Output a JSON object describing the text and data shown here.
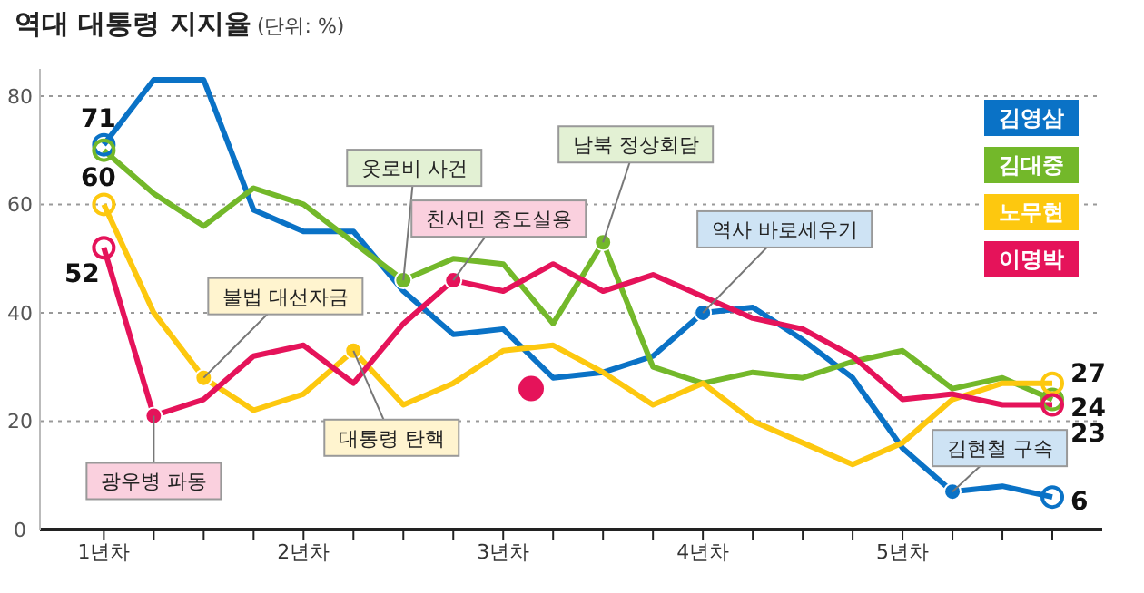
{
  "chart_data": {
    "type": "line",
    "title": "역대 대통령 지지율",
    "subtitle": "(단위: %)",
    "x": [
      1,
      1.25,
      1.5,
      1.75,
      2,
      2.25,
      2.5,
      2.75,
      3,
      3.25,
      3.5,
      3.75,
      4,
      4.25,
      4.5,
      4.75,
      5,
      5.25,
      5.5,
      5.75
    ],
    "xlim": [
      0.68,
      6
    ],
    "xticks": [
      {
        "value": 1,
        "label": "1년차"
      },
      {
        "value": 1.25,
        "label": null
      },
      {
        "value": 1.5,
        "label": null
      },
      {
        "value": 1.75,
        "label": null
      },
      {
        "value": 2,
        "label": "2년차"
      },
      {
        "value": 2.25,
        "label": null
      },
      {
        "value": 2.5,
        "label": null
      },
      {
        "value": 2.75,
        "label": null
      },
      {
        "value": 3,
        "label": "3년차"
      },
      {
        "value": 3.25,
        "label": null
      },
      {
        "value": 3.5,
        "label": null
      },
      {
        "value": 3.75,
        "label": null
      },
      {
        "value": 4,
        "label": "4년차"
      },
      {
        "value": 4.25,
        "label": null
      },
      {
        "value": 4.5,
        "label": null
      },
      {
        "value": 4.75,
        "label": null
      },
      {
        "value": 5,
        "label": "5년차"
      },
      {
        "value": 5.25,
        "label": null
      },
      {
        "value": 5.5,
        "label": null
      },
      {
        "value": 5.75,
        "label": null
      }
    ],
    "ylim": [
      0,
      85
    ],
    "yticks": [
      0,
      20,
      40,
      60,
      80
    ],
    "grid": "y",
    "legend": "top right",
    "line_style": "solid",
    "series": [
      {
        "name": "김영삼",
        "color": "#0a72c6",
        "values": [
          71,
          83,
          83,
          59,
          55,
          55,
          44,
          36,
          37,
          28,
          29,
          32,
          40,
          41,
          35,
          28,
          15,
          7,
          8,
          6
        ],
        "value_labels": [
          "71",
          null,
          null,
          null,
          null,
          null,
          null,
          null,
          null,
          null,
          null,
          null,
          null,
          null,
          null,
          null,
          null,
          null,
          null,
          "6"
        ]
      },
      {
        "name": "김대중",
        "color": "#73b82a",
        "values": [
          70,
          62,
          56,
          63,
          60,
          53,
          46,
          50,
          49,
          38,
          53,
          30,
          27,
          29,
          28,
          31,
          33,
          26,
          28,
          24
        ],
        "value_labels": [
          null,
          null,
          null,
          null,
          null,
          null,
          null,
          null,
          null,
          null,
          null,
          null,
          null,
          null,
          null,
          null,
          null,
          null,
          null,
          "24"
        ]
      },
      {
        "name": "노무현",
        "color": "#fdc80f",
        "values": [
          60,
          40,
          28,
          22,
          25,
          33,
          23,
          27,
          33,
          34,
          29,
          23,
          27,
          20,
          16,
          12,
          16,
          24,
          27,
          27
        ],
        "value_labels": [
          "60",
          null,
          null,
          null,
          null,
          null,
          null,
          null,
          null,
          null,
          null,
          null,
          null,
          null,
          null,
          null,
          null,
          null,
          null,
          "27"
        ]
      },
      {
        "name": "이명박",
        "color": "#e5135a",
        "values": [
          52,
          21,
          24,
          32,
          34,
          27,
          38,
          46,
          44,
          49,
          44,
          47,
          43,
          39,
          37,
          32,
          24,
          25,
          23,
          23
        ],
        "value_labels": [
          "52",
          null,
          null,
          null,
          null,
          null,
          null,
          null,
          null,
          null,
          null,
          null,
          null,
          null,
          null,
          null,
          null,
          null,
          null,
          "23"
        ]
      },
      {
        "type": "scatter",
        "color": "#e5135a",
        "x": [
          3.14
        ],
        "values": [
          26
        ]
      }
    ],
    "annotations": [
      {
        "text": "광우병 파동",
        "x": 1.25,
        "y": 21
      },
      {
        "text": "불법 대선자금",
        "x": 1.5,
        "y": 28
      },
      {
        "text": "대통령 탄핵",
        "x": 2.25,
        "y": 33
      },
      {
        "text": "옷로비 사건",
        "x": 2.5,
        "y": 46
      },
      {
        "text": "친서민 중도실용",
        "x": 2.75,
        "y": 46
      },
      {
        "text": "남북 정상회담",
        "x": 3.5,
        "y": 53
      },
      {
        "text": "역사 바로세우기",
        "x": 4,
        "y": 40
      },
      {
        "text": "김현철 구속",
        "x": 5.25,
        "y": 7
      }
    ]
  }
}
